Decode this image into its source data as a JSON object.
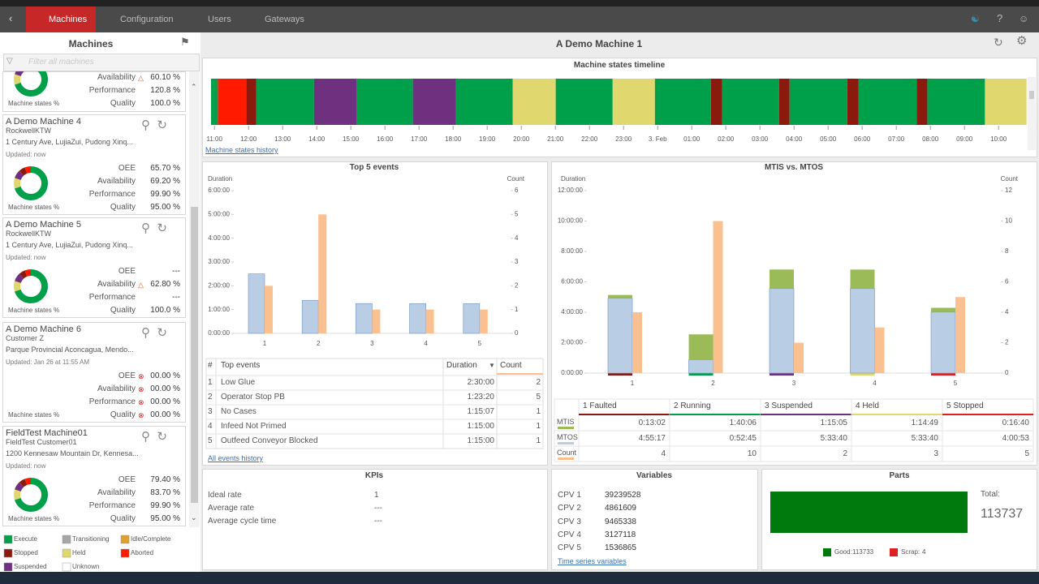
{
  "nav": {
    "tabs": [
      "Machines",
      "Configuration",
      "Users",
      "Gateways"
    ]
  },
  "sidebar": {
    "title": "Machines",
    "filter_placeholder": "Filter all machines",
    "machines": [
      {
        "metrics": [
          {
            "label": "Availability",
            "value": "60.10 %",
            "icon": "warning"
          },
          {
            "label": "Performance",
            "value": "120.8 %"
          },
          {
            "label": "Quality",
            "value": "100.0 %"
          }
        ],
        "caption": "Machine states %"
      },
      {
        "name": "A Demo Machine 4",
        "customer": "RockwellKTW",
        "address": "1 Century Ave, LujiaZui, Pudong Xinq...",
        "updated": "Updated: now",
        "metrics": [
          {
            "label": "OEE",
            "value": "65.70 %"
          },
          {
            "label": "Availability",
            "value": "69.20 %"
          },
          {
            "label": "Performance",
            "value": "99.90 %"
          },
          {
            "label": "Quality",
            "value": "95.00 %"
          }
        ],
        "caption": "Machine states %"
      },
      {
        "name": "A Demo Machine 5",
        "customer": "RockwellKTW",
        "address": "1 Century Ave, LujiaZui, Pudong Xinq...",
        "updated": "Updated: now",
        "metrics": [
          {
            "label": "OEE",
            "value": "---"
          },
          {
            "label": "Availability",
            "value": "62.80 %",
            "icon": "warning"
          },
          {
            "label": "Performance",
            "value": "---"
          },
          {
            "label": "Quality",
            "value": "100.0 %"
          }
        ],
        "caption": "Machine states %"
      },
      {
        "name": "A Demo Machine 6",
        "customer": "Customer Z",
        "address": "Parque Provincial Aconcagua, Mendo...",
        "updated": "Updated: Jan 26 at 11:55 AM",
        "metrics": [
          {
            "label": "OEE",
            "value": "00.00 %",
            "icon": "error"
          },
          {
            "label": "Availability",
            "value": "00.00 %",
            "icon": "error"
          },
          {
            "label": "Performance",
            "value": "00.00 %",
            "icon": "error"
          },
          {
            "label": "Quality",
            "value": "00.00 %",
            "icon": "error"
          }
        ],
        "caption": "Machine states %"
      },
      {
        "name": "FieldTest Machine01",
        "customer": "FieldTest Customer01",
        "address": "1200 Kennesaw Mountain Dr, Kennesa...",
        "updated": "Updated: now",
        "metrics": [
          {
            "label": "OEE",
            "value": "79.40 %"
          },
          {
            "label": "Availability",
            "value": "83.70 %"
          },
          {
            "label": "Performance",
            "value": "99.90 %"
          },
          {
            "label": "Quality",
            "value": "95.00 %"
          }
        ],
        "caption": "Machine states %"
      }
    ],
    "legend": [
      {
        "label": "Execute",
        "color": "#00a04a"
      },
      {
        "label": "Transitioning",
        "color": "#a6a6a6"
      },
      {
        "label": "Idle/Complete",
        "color": "#e0a030"
      },
      {
        "label": "Stopped",
        "color": "#8b1a0e"
      },
      {
        "label": "Held",
        "color": "#e0d76f"
      },
      {
        "label": "Aborted",
        "color": "#ff1a00"
      },
      {
        "label": "Suspended",
        "color": "#6f3080"
      },
      {
        "label": "Unknown",
        "color": "#ffffff"
      }
    ]
  },
  "main": {
    "title": "A Demo Machine 1",
    "timeline": {
      "type": "timeline",
      "title": "Machine states timeline",
      "link": "Machine states history",
      "xlim": [
        -0.1,
        23.9
      ],
      "xticks": [
        {
          "value": 0,
          "label": "11:00"
        },
        {
          "value": 1,
          "label": "12:00"
        },
        {
          "value": 2,
          "label": "13:00"
        },
        {
          "value": 3,
          "label": "14:00"
        },
        {
          "value": 4,
          "label": "15:00"
        },
        {
          "value": 5,
          "label": "16:00"
        },
        {
          "value": 6,
          "label": "17:00"
        },
        {
          "value": 7,
          "label": "18:00"
        },
        {
          "value": 8,
          "label": "19:00"
        },
        {
          "value": 9,
          "label": "20:00"
        },
        {
          "value": 10,
          "label": "21:00"
        },
        {
          "value": 11,
          "label": "22:00"
        },
        {
          "value": 12,
          "label": "23:00"
        },
        {
          "value": 13,
          "label": "3. Feb"
        },
        {
          "value": 14,
          "label": "01:00"
        },
        {
          "value": 15,
          "label": "02:00"
        },
        {
          "value": 16,
          "label": "03:00"
        },
        {
          "value": 17,
          "label": "04:00"
        },
        {
          "value": 18,
          "label": "05:00"
        },
        {
          "value": 19,
          "label": "06:00"
        },
        {
          "value": 20,
          "label": "07:00"
        },
        {
          "value": 21,
          "label": "08:00"
        },
        {
          "value": 22,
          "label": "09:00"
        },
        {
          "value": 23,
          "label": "10:00"
        }
      ],
      "segments": [
        {
          "color": "#00a04a",
          "hours": 0.2
        },
        {
          "color": "#ff1a00",
          "hours": 0.83
        },
        {
          "color": "#8b1a0e",
          "hours": 0.3
        },
        {
          "color": "#00a04a",
          "hours": 1.69
        },
        {
          "color": "#6f3080",
          "hours": 1.26
        },
        {
          "color": "#00a04a",
          "hours": 1.64
        },
        {
          "color": "#6f3080",
          "hours": 1.26
        },
        {
          "color": "#00a04a",
          "hours": 1.67
        },
        {
          "color": "#e0d76f",
          "hours": 1.26
        },
        {
          "color": "#00a04a",
          "hours": 1.67
        },
        {
          "color": "#e0d76f",
          "hours": 1.24
        },
        {
          "color": "#00a04a",
          "hours": 1.64
        },
        {
          "color": "#8b1a0e",
          "hours": 0.33
        },
        {
          "color": "#00a04a",
          "hours": 1.67
        },
        {
          "color": "#8b1a0e",
          "hours": 0.31
        },
        {
          "color": "#00a04a",
          "hours": 1.69
        },
        {
          "color": "#8b1a0e",
          "hours": 0.33
        },
        {
          "color": "#00a04a",
          "hours": 1.71
        },
        {
          "color": "#8b1a0e",
          "hours": 0.31
        },
        {
          "color": "#00a04a",
          "hours": 1.69
        },
        {
          "color": "#e0d76f",
          "hours": 1.22
        }
      ]
    },
    "top_events": {
      "type": "bar",
      "title": "Top 5 events",
      "y_label": "Duration",
      "y2_label": "Count",
      "categories": [
        "1",
        "2",
        "3",
        "4",
        "5"
      ],
      "ylim": [
        0,
        6
      ],
      "yticks": [
        {
          "value": 0,
          "label": "0:00:00"
        },
        {
          "value": 1,
          "label": "1:00:00"
        },
        {
          "value": 2,
          "label": "2:00:00"
        },
        {
          "value": 3,
          "label": "3:00:00"
        },
        {
          "value": 4,
          "label": "4:00:00"
        },
        {
          "value": 5,
          "label": "5:00:00"
        },
        {
          "value": 6,
          "label": "6:00:00"
        }
      ],
      "y2lim": [
        0,
        6
      ],
      "y2ticks": [
        0,
        1,
        2,
        3,
        4,
        5,
        6
      ],
      "series": [
        {
          "color": "#b9cde5",
          "values": [
            2.5,
            1.389,
            1.252,
            1.25,
            1.25
          ]
        },
        {
          "color": "#fac08f",
          "axis": "y2",
          "values": [
            2,
            5,
            1,
            1,
            1
          ]
        }
      ],
      "table": {
        "columns": [
          "#",
          "Top events",
          "Duration",
          "Count"
        ],
        "rows": [
          [
            1,
            "Low Glue",
            "2:30:00",
            2
          ],
          [
            2,
            "Operator Stop PB",
            "1:23:20",
            5
          ],
          [
            3,
            "No Cases",
            "1:15:07",
            1
          ],
          [
            4,
            "Infeed Not Primed",
            "1:15:00",
            1
          ],
          [
            5,
            "Outfeed Conveyor Blocked",
            "1:15:00",
            1
          ]
        ]
      },
      "link": "All events history"
    },
    "mtis": {
      "type": "bar",
      "title": "MTIS vs. MTOS",
      "y_label": "Duration",
      "y2_label": "Count",
      "stacked": true,
      "categories": [
        "1",
        "2",
        "3",
        "4",
        "5"
      ],
      "state_colors": [
        "#8b1a0e",
        "#00a04a",
        "#6f3080",
        "#e0d76f",
        "#e02020"
      ],
      "ylim": [
        0,
        12
      ],
      "yticks": [
        {
          "value": 0,
          "label": "0:00:00"
        },
        {
          "value": 2,
          "label": "2:00:00"
        },
        {
          "value": 4,
          "label": "4:00:00"
        },
        {
          "value": 6,
          "label": "6:00:00"
        },
        {
          "value": 8,
          "label": "8:00:00"
        },
        {
          "value": 10,
          "label": "10:00:00"
        },
        {
          "value": 12,
          "label": "12:00:00"
        }
      ],
      "y2lim": [
        0,
        12
      ],
      "y2ticks": [
        0,
        2,
        4,
        6,
        8,
        10,
        12
      ],
      "series": [
        {
          "color": "#b9cde5",
          "values": [
            4.921,
            0.879,
            5.561,
            5.561,
            4.015
          ]
        },
        {
          "color": "#9bbb59",
          "values": [
            0.217,
            1.668,
            1.251,
            1.247,
            0.278
          ]
        },
        {
          "color": "#fac08f",
          "axis": "y2",
          "values": [
            4,
            10,
            2,
            3,
            5
          ]
        }
      ],
      "table": {
        "columns": [
          "1 Faulted",
          "2 Running",
          "3 Suspended",
          "4 Held",
          "5 Stopped"
        ],
        "rows": [
          {
            "label": "MTIS",
            "color": "#9bbb59",
            "values": [
              "0:13:02",
              "1:40:06",
              "1:15:05",
              "1:14:49",
              "0:16:40"
            ]
          },
          {
            "label": "MTOS",
            "color": "#b9cde5",
            "values": [
              "4:55:17",
              "0:52:45",
              "5:33:40",
              "5:33:40",
              "4:00:53"
            ]
          },
          {
            "label": "Count",
            "color": "#fac08f",
            "values": [
              4,
              10,
              2,
              3,
              5
            ]
          }
        ]
      }
    },
    "kpis": {
      "title": "KPIs",
      "rows": [
        [
          "Ideal rate",
          1
        ],
        [
          "Average rate",
          "---"
        ],
        [
          "Average cycle time",
          "---"
        ]
      ]
    },
    "variables": {
      "title": "Variables",
      "rows": [
        [
          "CPV 1",
          39239528
        ],
        [
          "CPV 2",
          4861609
        ],
        [
          "CPV 3",
          9465338
        ],
        [
          "CPV 4",
          3127118
        ],
        [
          "CPV 5",
          1536865
        ]
      ],
      "link": "Time series variables"
    },
    "parts": {
      "type": "bar",
      "title": "Parts",
      "total_label": "Total:",
      "total": 113737,
      "series": [
        {
          "name": "Good:",
          "color": "#007a0c",
          "value": 113733
        },
        {
          "name": "Scrap:",
          "color": "#e02020",
          "value": 4
        }
      ]
    }
  }
}
